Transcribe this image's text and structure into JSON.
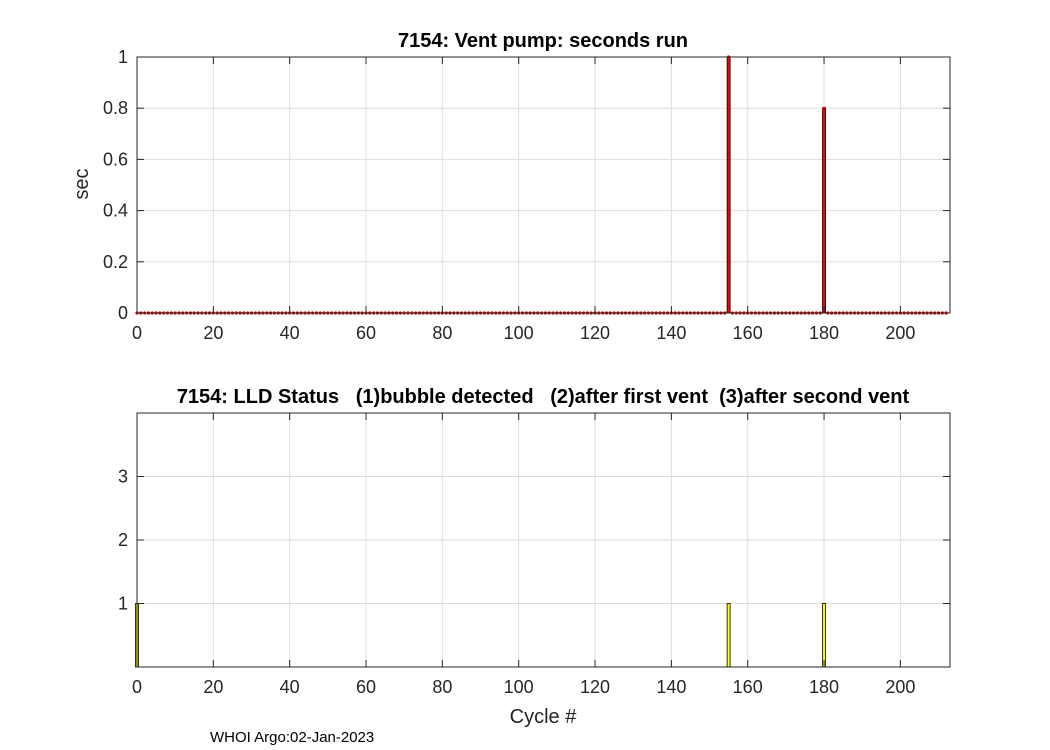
{
  "footer": "WHOI Argo:02-Jan-2023",
  "chart_data": [
    {
      "type": "bar",
      "title": "7154: Vent pump: seconds run",
      "xlabel": "",
      "ylabel": "sec",
      "xlim": [
        0,
        213
      ],
      "ylim": [
        0,
        1
      ],
      "xticks": [
        0,
        20,
        40,
        60,
        80,
        100,
        120,
        140,
        160,
        180,
        200
      ],
      "yticks": [
        0,
        0.2,
        0.4,
        0.6,
        0.8,
        1
      ],
      "ytick_labels": [
        "0",
        "0.2",
        "0.4",
        "0.6",
        "0.8",
        "1"
      ],
      "grid": true,
      "bar_color": "#ff0000",
      "marker_color": "#cc0000",
      "cycles": [
        0,
        212
      ],
      "default_value": 0,
      "nonzero": [
        {
          "x": 155,
          "y": 1
        },
        {
          "x": 180,
          "y": 0.8
        }
      ]
    },
    {
      "type": "bar",
      "title": "7154: LLD Status   (1)bubble detected   (2)after first vent  (3)after second vent",
      "xlabel": "Cycle #",
      "ylabel": "",
      "xlim": [
        0,
        213
      ],
      "ylim": [
        0,
        4
      ],
      "xticks": [
        0,
        20,
        40,
        60,
        80,
        100,
        120,
        140,
        160,
        180,
        200
      ],
      "yticks": [
        1,
        2,
        3
      ],
      "ytick_labels": [
        "1",
        "2",
        "3"
      ],
      "grid": true,
      "bar_color": "#ffff00",
      "points": [
        {
          "x": 0,
          "y": 1
        },
        {
          "x": 155,
          "y": 1
        },
        {
          "x": 180,
          "y": 1
        }
      ]
    }
  ]
}
